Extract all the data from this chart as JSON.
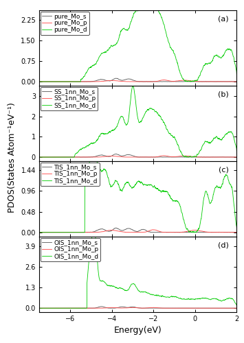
{
  "x_min": -7.5,
  "x_max": 2.0,
  "panels": [
    {
      "label": "(a)",
      "yticks": [
        0.0,
        0.75,
        1.5,
        2.25
      ],
      "ylim": [
        -0.15,
        2.6
      ],
      "legend_labels": [
        "pure_Mo_s",
        "pure_Mo_p",
        "pure_Mo_d"
      ],
      "colors": [
        "#555555",
        "#ff4444",
        "#00cc00"
      ]
    },
    {
      "label": "(b)",
      "yticks": [
        0,
        1,
        2,
        3
      ],
      "ylim": [
        -0.2,
        3.5
      ],
      "legend_labels": [
        "SS_1nn_Mo_s",
        "SS_1nn_Mo_p",
        "SS_1nn_Mo_d"
      ],
      "colors": [
        "#555555",
        "#ff4444",
        "#00cc00"
      ]
    },
    {
      "label": "(c)",
      "yticks": [
        0.0,
        0.48,
        0.96,
        1.44
      ],
      "ylim": [
        -0.1,
        1.65
      ],
      "legend_labels": [
        "TIS_1nn_Mo_s",
        "TIS_1nn_Mo_p",
        "TIS_1nn_Mo_d"
      ],
      "colors": [
        "#555555",
        "#ff4444",
        "#00cc00"
      ]
    },
    {
      "label": "(d)",
      "yticks": [
        0.0,
        1.3,
        2.6,
        3.9
      ],
      "ylim": [
        -0.25,
        4.5
      ],
      "legend_labels": [
        "OIS_1nn_Mo_s",
        "OIS_1nn_Mo_p",
        "OIS_1nn_Mo_d"
      ],
      "colors": [
        "#555555",
        "#ff4444",
        "#00cc00"
      ]
    }
  ],
  "ylabel": "PDOS(States Atom⁻¹eV⁻¹)",
  "xlabel": "Energy(eV)",
  "line_width": 0.6,
  "background_color": "#ffffff",
  "tick_label_fontsize": 7,
  "axis_label_fontsize": 9,
  "legend_fontsize": 6.5
}
